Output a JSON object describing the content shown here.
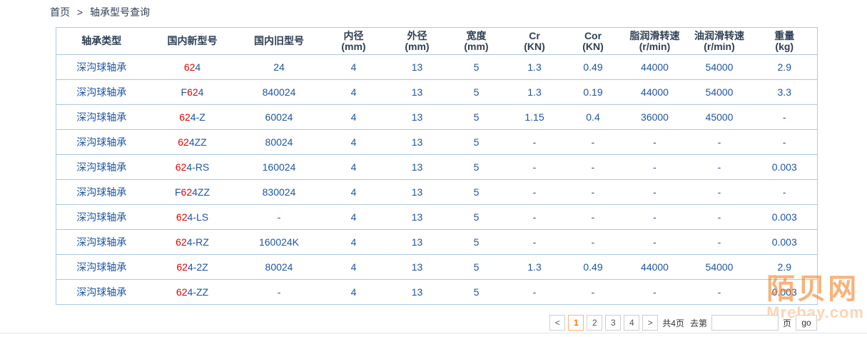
{
  "breadcrumb": {
    "home": "首页",
    "separator": ">",
    "current": "轴承型号查询"
  },
  "table": {
    "columns": [
      {
        "label": "轴承类型",
        "sub": ""
      },
      {
        "label": "国内新型号",
        "sub": ""
      },
      {
        "label": "国内旧型号",
        "sub": ""
      },
      {
        "label": "内径",
        "sub": "(mm)"
      },
      {
        "label": "外径",
        "sub": "(mm)"
      },
      {
        "label": "宽度",
        "sub": "(mm)"
      },
      {
        "label": "Cr",
        "sub": "(KN)"
      },
      {
        "label": "Cor",
        "sub": "(KN)"
      },
      {
        "label": "脂润滑转速",
        "sub": "(r/min)"
      },
      {
        "label": "油润滑转速",
        "sub": "(r/min)"
      },
      {
        "label": "重量",
        "sub": "(kg)"
      }
    ],
    "rows": [
      {
        "type": "深沟球轴承",
        "model_prefix": "",
        "model_match": "62",
        "model_suffix": "4",
        "old_model": "24",
        "inner_mm": "4",
        "outer_mm": "13",
        "width_mm": "5",
        "cr": "1.3",
        "cor": "0.49",
        "grease_rpm": "44000",
        "oil_rpm": "54000",
        "weight": "2.9"
      },
      {
        "type": "深沟球轴承",
        "model_prefix": "F",
        "model_match": "62",
        "model_suffix": "4",
        "old_model": "840024",
        "inner_mm": "4",
        "outer_mm": "13",
        "width_mm": "5",
        "cr": "1.3",
        "cor": "0.19",
        "grease_rpm": "44000",
        "oil_rpm": "54000",
        "weight": "3.3"
      },
      {
        "type": "深沟球轴承",
        "model_prefix": "",
        "model_match": "62",
        "model_suffix": "4-Z",
        "old_model": "60024",
        "inner_mm": "4",
        "outer_mm": "13",
        "width_mm": "5",
        "cr": "1.15",
        "cor": "0.4",
        "grease_rpm": "36000",
        "oil_rpm": "45000",
        "weight": "-"
      },
      {
        "type": "深沟球轴承",
        "model_prefix": "",
        "model_match": "62",
        "model_suffix": "4ZZ",
        "old_model": "80024",
        "inner_mm": "4",
        "outer_mm": "13",
        "width_mm": "5",
        "cr": "-",
        "cor": "-",
        "grease_rpm": "-",
        "oil_rpm": "-",
        "weight": "-"
      },
      {
        "type": "深沟球轴承",
        "model_prefix": "",
        "model_match": "62",
        "model_suffix": "4-RS",
        "old_model": "160024",
        "inner_mm": "4",
        "outer_mm": "13",
        "width_mm": "5",
        "cr": "-",
        "cor": "-",
        "grease_rpm": "-",
        "oil_rpm": "-",
        "weight": "0.003"
      },
      {
        "type": "深沟球轴承",
        "model_prefix": "F",
        "model_match": "62",
        "model_suffix": "4ZZ",
        "old_model": "830024",
        "inner_mm": "4",
        "outer_mm": "13",
        "width_mm": "5",
        "cr": "-",
        "cor": "-",
        "grease_rpm": "-",
        "oil_rpm": "-",
        "weight": "-"
      },
      {
        "type": "深沟球轴承",
        "model_prefix": "",
        "model_match": "62",
        "model_suffix": "4-LS",
        "old_model": "-",
        "inner_mm": "4",
        "outer_mm": "13",
        "width_mm": "5",
        "cr": "-",
        "cor": "-",
        "grease_rpm": "-",
        "oil_rpm": "-",
        "weight": "0.003"
      },
      {
        "type": "深沟球轴承",
        "model_prefix": "",
        "model_match": "62",
        "model_suffix": "4-RZ",
        "old_model": "160024K",
        "inner_mm": "4",
        "outer_mm": "13",
        "width_mm": "5",
        "cr": "-",
        "cor": "-",
        "grease_rpm": "-",
        "oil_rpm": "-",
        "weight": "0.003"
      },
      {
        "type": "深沟球轴承",
        "model_prefix": "",
        "model_match": "62",
        "model_suffix": "4-2Z",
        "old_model": "80024",
        "inner_mm": "4",
        "outer_mm": "13",
        "width_mm": "5",
        "cr": "1.3",
        "cor": "0.49",
        "grease_rpm": "44000",
        "oil_rpm": "54000",
        "weight": "2.9"
      },
      {
        "type": "深沟球轴承",
        "model_prefix": "",
        "model_match": "62",
        "model_suffix": "4-ZZ",
        "old_model": "-",
        "inner_mm": "4",
        "outer_mm": "13",
        "width_mm": "5",
        "cr": "-",
        "cor": "-",
        "grease_rpm": "-",
        "oil_rpm": "-",
        "weight": "0.003"
      }
    ]
  },
  "pagination": {
    "prev": "<",
    "next": ">",
    "pages": [
      "1",
      "2",
      "3",
      "4"
    ],
    "active_page": "1",
    "total_text": "共4页",
    "goto_prefix": "去第",
    "goto_suffix": "页",
    "go_label": "go",
    "input_value": ""
  },
  "watermark": {
    "cn": "陌贝网",
    "en": "Mrebay.com"
  },
  "colors": {
    "cell_blue": "#1e55a4",
    "highlight_red": "#e60000",
    "header_dark": "#2e3f55",
    "border_blue": "#abc8e2",
    "active_orange": "#ff7300",
    "watermark_orange": "#f28022"
  }
}
